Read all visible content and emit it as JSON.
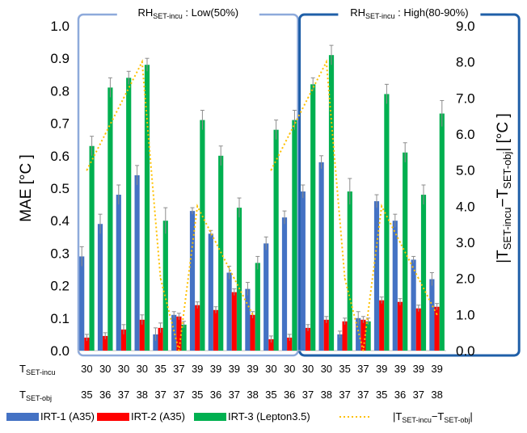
{
  "chart_data": {
    "type": "bar",
    "y_left_label": "MAE [°C ]",
    "y_left_ticks": [
      "0.0",
      "0.1",
      "0.2",
      "0.3",
      "0.4",
      "0.5",
      "0.6",
      "0.7",
      "0.8",
      "0.9",
      "1.0"
    ],
    "ylim_left": [
      0,
      1.0
    ],
    "y_right_label": {
      "pre": "|T",
      "sub1": "SET-incu",
      "mid": "−T",
      "sub2": "SET-obj",
      "post": "| [°C ]"
    },
    "y_right_ticks": [
      "0.0",
      "1.0",
      "2.0",
      "3.0",
      "4.0",
      "5.0",
      "6.0",
      "7.0",
      "8.0",
      "9.0"
    ],
    "ylim_right": [
      0,
      9.0
    ],
    "groups": [
      {
        "pre": "RH",
        "sub": "SET-incu",
        "post": " : Low(50%)",
        "color": "#8eaadb",
        "start": 0,
        "end": 11
      },
      {
        "pre": "RH",
        "sub": "SET-incu",
        "post": " : High(80-90%)",
        "color": "#1f5fa8",
        "start": 12,
        "end": 23
      }
    ],
    "row_labels": [
      {
        "pre": "T",
        "sub": "SET-incu"
      },
      {
        "pre": "T",
        "sub": "SET-obj"
      }
    ],
    "t_set_incu": [
      "30",
      "30",
      "30",
      "30",
      "35",
      "37",
      "39",
      "39",
      "39",
      "39",
      "30",
      "30",
      "30",
      "30",
      "35",
      "37",
      "39",
      "39",
      "39",
      "39"
    ],
    "t_set_obj": [
      "35",
      "36",
      "37",
      "38",
      "37",
      "37",
      "35",
      "36",
      "37",
      "38",
      "35",
      "36",
      "37",
      "38",
      "37",
      "37",
      "35",
      "36",
      "37",
      "38"
    ],
    "series": [
      {
        "name": "IRT-1 (A35)",
        "color": "#4472c4",
        "values": [
          0.29,
          0.39,
          0.48,
          0.54,
          0.05,
          0.11,
          0.43,
          0.36,
          0.24,
          0.19,
          0.33,
          0.41,
          0.49,
          0.58,
          0.05,
          0.1,
          0.46,
          0.4,
          0.28,
          0.22
        ],
        "errors": [
          0.03,
          0.03,
          0.03,
          0.03,
          0.02,
          0.01,
          0.01,
          0.01,
          0.02,
          0.02,
          0.02,
          0.02,
          0.02,
          0.02,
          0.01,
          0.02,
          0.02,
          0.02,
          0.01,
          0.02
        ]
      },
      {
        "name": "IRT-2 (A35)",
        "color": "#ff0000",
        "values": [
          0.04,
          0.045,
          0.065,
          0.095,
          0.07,
          0.105,
          0.14,
          0.125,
          0.18,
          0.11,
          0.035,
          0.04,
          0.07,
          0.095,
          0.09,
          0.095,
          0.155,
          0.15,
          0.13,
          0.135
        ],
        "errors": [
          0.01,
          0.01,
          0.015,
          0.015,
          0.015,
          0.01,
          0.01,
          0.01,
          0.01,
          0.01,
          0.01,
          0.01,
          0.01,
          0.01,
          0.01,
          0.01,
          0.01,
          0.01,
          0.01,
          0.01
        ]
      },
      {
        "name": "IRT-3 (Lepton3.5)",
        "color": "#00b050",
        "values": [
          0.63,
          0.81,
          0.84,
          0.88,
          0.4,
          0.08,
          0.71,
          0.6,
          0.44,
          0.27,
          0.68,
          0.71,
          0.82,
          0.91,
          0.49,
          0.09,
          0.79,
          0.61,
          0.48,
          0.73
        ],
        "errors": [
          0.03,
          0.03,
          0.02,
          0.02,
          0.04,
          0.01,
          0.03,
          0.03,
          0.03,
          0.02,
          0.03,
          0.03,
          0.02,
          0.03,
          0.04,
          0.01,
          0.03,
          0.03,
          0.03,
          0.04
        ]
      }
    ],
    "line_series": {
      "legend": {
        "pre": "|T",
        "sub1": "SET-incu",
        "mid": "−T",
        "sub2": "SET-obj",
        "post": "|"
      },
      "color": "#ffc000",
      "axis": "right",
      "values": [
        5,
        6,
        7,
        8,
        2,
        0,
        4,
        3,
        2,
        1,
        5,
        6,
        7,
        8,
        2,
        0,
        4,
        3,
        2,
        1
      ]
    }
  }
}
